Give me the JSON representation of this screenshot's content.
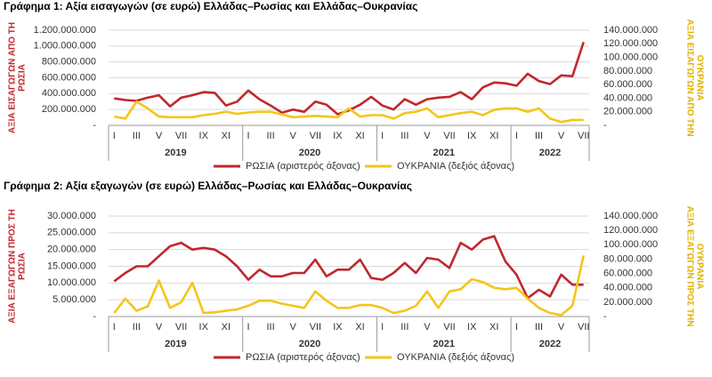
{
  "chart_data": [
    {
      "type": "line",
      "title": "Γράφημα 1: Αξία εισαγωγών (σε ευρώ) Ελλάδας–Ρωσίας και Ελλάδας–Ουκρανίας",
      "ylabel": [
        "ΑΞΙΑ ΕΙΣΑΓΩΓΩΝ ΑΠΟ ΤΗ",
        "ΡΩΣΙΑ"
      ],
      "y2label": [
        "ΑΞΙΑ ΕΙΣΑΓΩΓΩΝ ΑΠΟ ΤΗΝ",
        "ΟΥΚΡΑΝΙΑ"
      ],
      "categories": [
        "I",
        null,
        "III",
        null,
        "V",
        null,
        "VII",
        null,
        "IX",
        null,
        "XI",
        null,
        "I",
        null,
        "III",
        null,
        "V",
        null,
        "VII",
        null,
        "IX",
        null,
        "XI",
        null,
        "I",
        null,
        "III",
        null,
        "V",
        null,
        "VII",
        null,
        "IX",
        null,
        "XI",
        null,
        "I",
        null,
        "III",
        null,
        "V",
        null,
        "VII"
      ],
      "x_groups": [
        "2019",
        "2020",
        "2021",
        "2022"
      ],
      "ylim": [
        0,
        1200000000
      ],
      "yticks": [
        {
          "value": 0,
          "label": "-"
        },
        {
          "value": 200000000,
          "label": "200.000.000"
        },
        {
          "value": 400000000,
          "label": "400.000.000"
        },
        {
          "value": 600000000,
          "label": "600.000.000"
        },
        {
          "value": 800000000,
          "label": "800.000.000"
        },
        {
          "value": 1000000000,
          "label": "1.000.000.000"
        },
        {
          "value": 1200000000,
          "label": "1.200.000.000"
        }
      ],
      "y2lim": [
        0,
        140000000
      ],
      "y2ticks": [
        {
          "value": 0,
          "label": "-"
        },
        {
          "value": 20000000,
          "label": "20.000.000"
        },
        {
          "value": 40000000,
          "label": "40.000.000"
        },
        {
          "value": 60000000,
          "label": "60.000.000"
        },
        {
          "value": 80000000,
          "label": "80.000.000"
        },
        {
          "value": 100000000,
          "label": "100.000.000"
        },
        {
          "value": 120000000,
          "label": "120.000.000"
        },
        {
          "value": 140000000,
          "label": "140.000.000"
        }
      ],
      "grid": true,
      "series": [
        {
          "name": "ΡΩΣΙΑ (αριστερός άξονας)",
          "color": "#c0272d",
          "values": [
            340000000,
            320000000,
            310000000,
            350000000,
            380000000,
            240000000,
            350000000,
            380000000,
            420000000,
            410000000,
            250000000,
            300000000,
            440000000,
            330000000,
            250000000,
            160000000,
            200000000,
            170000000,
            300000000,
            260000000,
            140000000,
            190000000,
            260000000,
            360000000,
            250000000,
            200000000,
            330000000,
            260000000,
            330000000,
            350000000,
            360000000,
            420000000,
            330000000,
            480000000,
            540000000,
            530000000,
            500000000,
            650000000,
            560000000,
            520000000,
            630000000,
            620000000,
            1050000000
          ]
        },
        {
          "name": "ΟΥΚΡΑΝΙΑ (δεξιός άξονας)",
          "color": "#f5c518",
          "axis": "y2",
          "values": [
            13000000,
            10000000,
            35000000,
            25000000,
            13000000,
            12000000,
            12000000,
            12000000,
            15000000,
            17000000,
            20000000,
            17000000,
            19000000,
            20000000,
            20000000,
            16000000,
            12000000,
            13000000,
            14000000,
            13000000,
            12000000,
            25000000,
            13000000,
            15000000,
            15000000,
            10000000,
            18000000,
            20000000,
            25000000,
            12000000,
            15000000,
            18000000,
            20000000,
            15000000,
            23000000,
            25000000,
            25000000,
            20000000,
            25000000,
            10000000,
            5000000,
            8000000,
            8000000
          ]
        }
      ]
    },
    {
      "type": "line",
      "title": "Γράφημα 2: Αξία εξαγωγών (σε ευρώ) Ελλάδας–Ρωσίας και Ελλάδας–Ουκρανίας",
      "ylabel": [
        "ΑΞΙΑ ΕΞΑΓΩΓΩΝ ΠΡΟΣ ΤΗ",
        "ΡΩΣΙΑ"
      ],
      "y2label": [
        "ΑΞΙΑ ΕΞΑΓΩΓΩΝ ΠΡΟΣ ΤΗΝ",
        "ΟΥΚΡΑΝΙΑ"
      ],
      "categories": [
        "I",
        null,
        "III",
        null,
        "V",
        null,
        "VII",
        null,
        "IX",
        null,
        "XI",
        null,
        "I",
        null,
        "III",
        null,
        "V",
        null,
        "VII",
        null,
        "IX",
        null,
        "XI",
        null,
        "I",
        null,
        "III",
        null,
        "V",
        null,
        "VII",
        null,
        "IX",
        null,
        "XI",
        null,
        "I",
        null,
        "III",
        null,
        "V",
        null,
        "VII"
      ],
      "x_groups": [
        "2019",
        "2020",
        "2021",
        "2022"
      ],
      "ylim": [
        0,
        30000000
      ],
      "yticks": [
        {
          "value": 0,
          "label": "-"
        },
        {
          "value": 5000000,
          "label": "5.000.000"
        },
        {
          "value": 10000000,
          "label": "10.000.000"
        },
        {
          "value": 15000000,
          "label": "15.000.000"
        },
        {
          "value": 20000000,
          "label": "20.000.000"
        },
        {
          "value": 25000000,
          "label": "25.000.000"
        },
        {
          "value": 30000000,
          "label": "30.000.000"
        }
      ],
      "y2lim": [
        0,
        140000000
      ],
      "y2ticks": [
        {
          "value": 0,
          "label": "-"
        },
        {
          "value": 20000000,
          "label": "20.000.000"
        },
        {
          "value": 40000000,
          "label": "40.000.000"
        },
        {
          "value": 60000000,
          "label": "60.000.000"
        },
        {
          "value": 80000000,
          "label": "80.000.000"
        },
        {
          "value": 100000000,
          "label": "100.000.000"
        },
        {
          "value": 120000000,
          "label": "120.000.000"
        },
        {
          "value": 140000000,
          "label": "140.000.000"
        }
      ],
      "grid": true,
      "series": [
        {
          "name": "ΡΩΣΙΑ (αριστερός άξονας)",
          "color": "#c0272d",
          "values": [
            10500000,
            13000000,
            15000000,
            15000000,
            18000000,
            21000000,
            22000000,
            20000000,
            20500000,
            20000000,
            18000000,
            15000000,
            11000000,
            14000000,
            12000000,
            12000000,
            13000000,
            13000000,
            17000000,
            12000000,
            14000000,
            14000000,
            17000000,
            11500000,
            11000000,
            13000000,
            16000000,
            13000000,
            17500000,
            17000000,
            14500000,
            22000000,
            20000000,
            23000000,
            24000000,
            16500000,
            12500000,
            5500000,
            8000000,
            6000000,
            12500000,
            9500000,
            9500000
          ]
        },
        {
          "name": "ΟΥΚΡΑΝΙΑ (δεξιός άξονας)",
          "color": "#f5c518",
          "axis": "y2",
          "values": [
            5000000,
            25000000,
            8000000,
            14000000,
            50000000,
            12000000,
            20000000,
            47000000,
            5000000,
            6000000,
            8000000,
            10000000,
            15000000,
            22000000,
            22000000,
            18000000,
            15000000,
            12000000,
            35000000,
            22000000,
            12000000,
            12000000,
            16000000,
            16000000,
            12000000,
            5000000,
            8000000,
            15000000,
            35000000,
            12000000,
            35000000,
            38000000,
            52000000,
            48000000,
            40000000,
            38000000,
            40000000,
            25000000,
            12000000,
            5000000,
            2000000,
            15000000,
            85000000
          ]
        }
      ]
    }
  ]
}
